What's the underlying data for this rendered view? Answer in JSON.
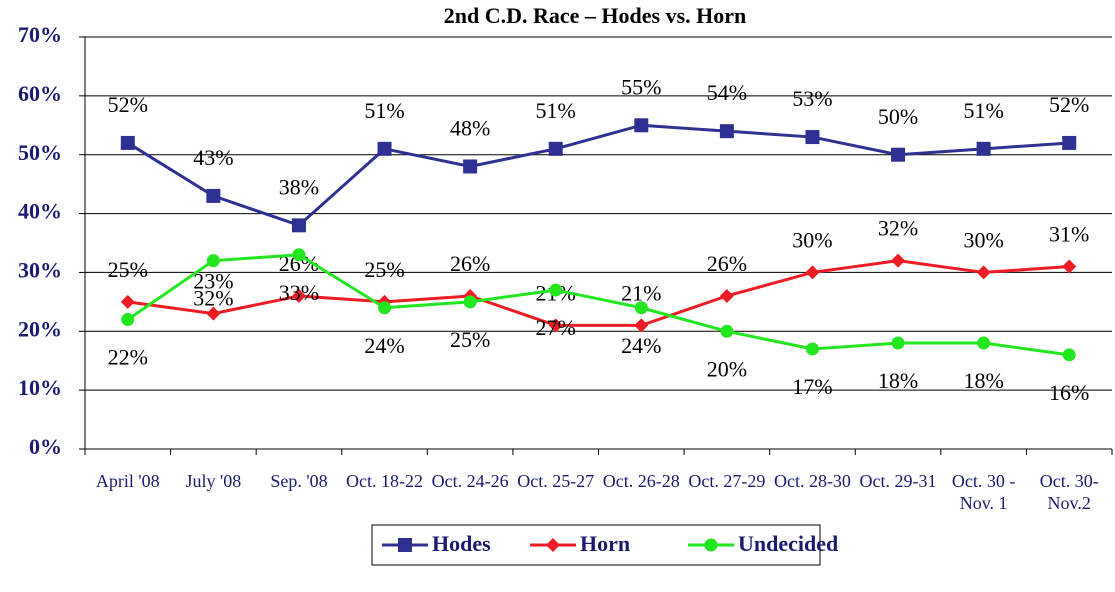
{
  "chart_data": {
    "type": "line",
    "title": "2nd C.D. Race – Hodes vs. Horn",
    "categories": [
      "April '08",
      "July '08",
      "Sep. '08",
      "Oct. 18-22",
      "Oct. 24-26",
      "Oct. 25-27",
      "Oct. 26-28",
      "Oct. 27-29",
      "Oct. 28-30",
      "Oct. 29-31",
      "Oct. 30 - Nov. 1",
      "Oct. 30-Nov.2"
    ],
    "series": [
      {
        "name": "Hodes",
        "color": "#2e3192",
        "marker": "square",
        "values": [
          52,
          43,
          38,
          51,
          48,
          51,
          55,
          54,
          53,
          50,
          51,
          52
        ],
        "value_labels": [
          "52%",
          "43%",
          "38%",
          "51%",
          "48%",
          "51%",
          "55%",
          "54%",
          "53%",
          "50%",
          "51%",
          "52%"
        ]
      },
      {
        "name": "Horn",
        "color": "#ee1c24",
        "marker": "diamond",
        "values": [
          25,
          23,
          26,
          25,
          26,
          21,
          21,
          26,
          30,
          32,
          30,
          31
        ],
        "value_labels": [
          "25%",
          "23%",
          "26%",
          "25%",
          "26%",
          "21%",
          "21%",
          "26%",
          "30%",
          "32%",
          "30%",
          "31%"
        ]
      },
      {
        "name": "Undecided",
        "color": "#22e61e",
        "marker": "circle",
        "values": [
          22,
          32,
          33,
          24,
          25,
          27,
          24,
          20,
          17,
          18,
          18,
          16
        ],
        "value_labels": [
          "22%",
          "32%",
          "33%",
          "24%",
          "25%",
          "27%",
          "24%",
          "20%",
          "17%",
          "18%",
          "18%",
          "16%"
        ]
      }
    ],
    "ylim": [
      0,
      70
    ],
    "yticks": [
      {
        "value": 0,
        "label": "0%"
      },
      {
        "value": 10,
        "label": "10%"
      },
      {
        "value": 20,
        "label": "20%"
      },
      {
        "value": 30,
        "label": "30%"
      },
      {
        "value": 40,
        "label": "40%"
      },
      {
        "value": 50,
        "label": "50%"
      },
      {
        "value": 60,
        "label": "60%"
      },
      {
        "value": 70,
        "label": "70%"
      }
    ],
    "grid": true,
    "legend": "bottom"
  }
}
